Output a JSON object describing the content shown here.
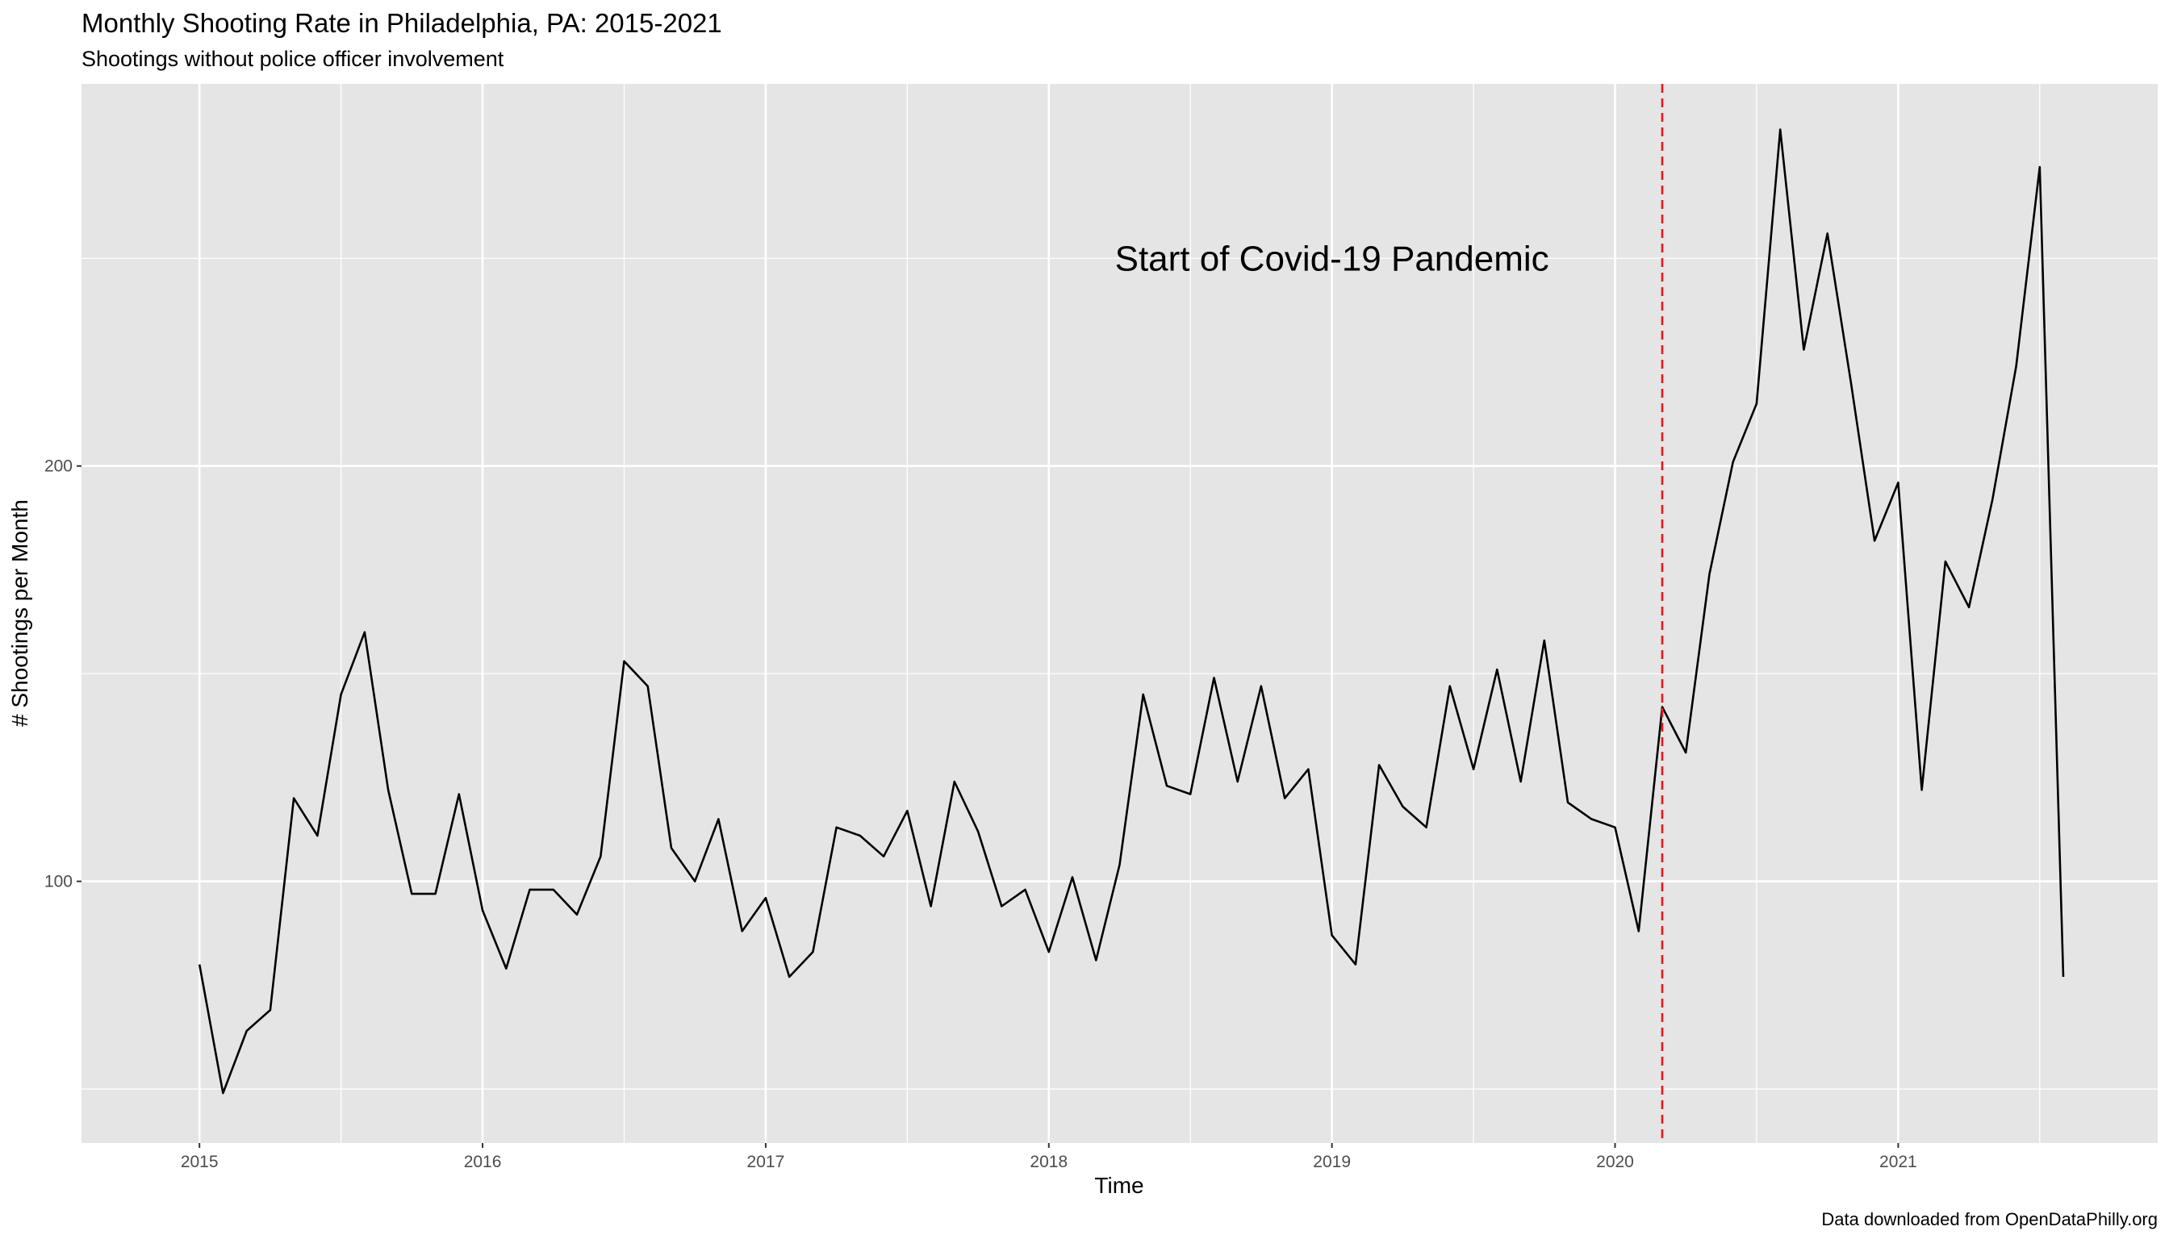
{
  "chart_data": {
    "type": "line",
    "title": "Monthly Shooting Rate in Philadelphia, PA: 2015-2021",
    "subtitle": "Shootings without police officer involvement",
    "xlabel": "Time",
    "ylabel": "# Shootings per Month",
    "caption": "Data downloaded from OpenDataPhilly.org",
    "xlim": [
      "2014-08",
      "2021-12"
    ],
    "ylim": [
      37,
      292
    ],
    "x_ticks": [
      "2015",
      "2016",
      "2017",
      "2018",
      "2019",
      "2020",
      "2021"
    ],
    "y_ticks": [
      "100",
      "200"
    ],
    "grid": true,
    "series": [
      {
        "x": [
          "2015-01",
          "2015-02",
          "2015-03",
          "2015-04",
          "2015-05",
          "2015-06",
          "2015-07",
          "2015-08",
          "2015-09",
          "2015-10",
          "2015-11",
          "2015-12",
          "2016-01",
          "2016-02",
          "2016-03",
          "2016-04",
          "2016-05",
          "2016-06",
          "2016-07",
          "2016-08",
          "2016-09",
          "2016-10",
          "2016-11",
          "2016-12",
          "2017-01",
          "2017-02",
          "2017-03",
          "2017-04",
          "2017-05",
          "2017-06",
          "2017-07",
          "2017-08",
          "2017-09",
          "2017-10",
          "2017-11",
          "2017-12",
          "2018-01",
          "2018-02",
          "2018-03",
          "2018-04",
          "2018-05",
          "2018-06",
          "2018-07",
          "2018-08",
          "2018-09",
          "2018-10",
          "2018-11",
          "2018-12",
          "2019-01",
          "2019-02",
          "2019-03",
          "2019-04",
          "2019-05",
          "2019-06",
          "2019-07",
          "2019-08",
          "2019-09",
          "2019-10",
          "2019-11",
          "2019-12",
          "2020-01",
          "2020-02",
          "2020-03",
          "2020-04",
          "2020-05",
          "2020-06",
          "2020-07",
          "2020-08",
          "2020-09",
          "2020-10",
          "2020-11",
          "2020-12",
          "2021-01",
          "2021-02",
          "2021-03",
          "2021-04",
          "2021-05",
          "2021-06",
          "2021-07",
          "2021-08"
        ],
        "values": [
          80,
          49,
          64,
          69,
          120,
          111,
          145,
          160,
          122,
          97,
          97,
          121,
          93,
          79,
          98,
          98,
          92,
          106,
          153,
          147,
          108,
          100,
          115,
          88,
          96,
          77,
          83,
          113,
          111,
          106,
          117,
          94,
          124,
          112,
          94,
          98,
          83,
          101,
          81,
          104,
          145,
          123,
          121,
          149,
          124,
          147,
          120,
          127,
          87,
          80,
          128,
          118,
          113,
          147,
          127,
          151,
          124,
          158,
          119,
          115,
          113,
          88,
          142,
          131,
          174,
          201,
          215,
          281,
          228,
          256,
          220,
          182,
          196,
          122,
          177,
          166,
          192,
          224,
          272,
          77
        ],
        "color": "#000000"
      }
    ],
    "vline": {
      "x": "2020-03",
      "color": "#e41a1c",
      "style": "dashed"
    },
    "annotation": {
      "text": "Start of Covid-19 Pandemic",
      "x": "2019-01",
      "y": 250
    },
    "panel_background": "#e5e5e5",
    "grid_color": "#ffffff"
  }
}
